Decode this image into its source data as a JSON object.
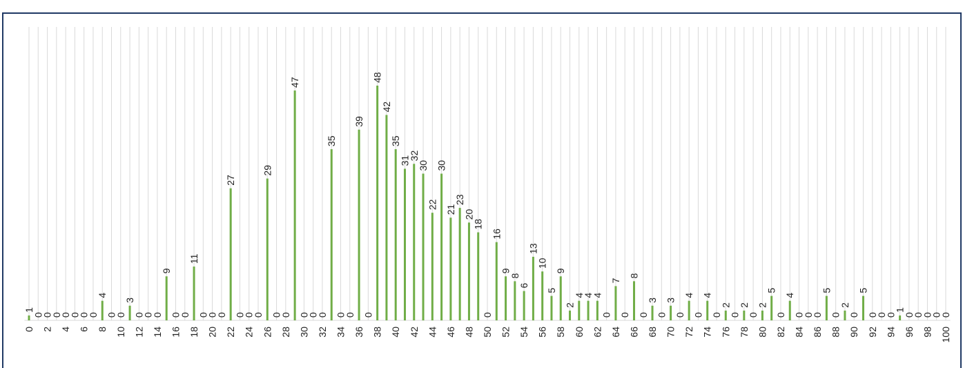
{
  "chart_data": {
    "type": "bar",
    "categories": [
      "0",
      null,
      "2",
      null,
      "4",
      null,
      "6",
      null,
      "8",
      null,
      "10",
      null,
      "12",
      null,
      "14",
      null,
      "16",
      null,
      "18",
      null,
      "20",
      null,
      "22",
      null,
      "24",
      null,
      "26",
      null,
      "28",
      null,
      "30",
      null,
      "32",
      null,
      "34",
      null,
      "36",
      null,
      "38",
      null,
      "40",
      null,
      "42",
      null,
      "44",
      null,
      "46",
      null,
      "48",
      null,
      "50",
      null,
      "52",
      null,
      "54",
      null,
      "56",
      null,
      "58",
      null,
      "60",
      null,
      "62",
      null,
      "64",
      null,
      "66",
      null,
      "68",
      null,
      "70",
      null,
      "72",
      null,
      "74",
      null,
      "76",
      null,
      "78",
      null,
      "80",
      null,
      "82",
      null,
      "84",
      null,
      "86",
      null,
      "88",
      null,
      "90",
      null,
      "92",
      null,
      "94",
      null,
      "96",
      null,
      "98",
      null,
      "100"
    ],
    "values": [
      1,
      0,
      0,
      0,
      0,
      0,
      0,
      0,
      4,
      0,
      0,
      3,
      0,
      0,
      0,
      9,
      0,
      0,
      11,
      0,
      0,
      0,
      27,
      0,
      0,
      0,
      29,
      0,
      0,
      47,
      0,
      0,
      0,
      35,
      0,
      0,
      39,
      0,
      48,
      42,
      35,
      31,
      32,
      30,
      22,
      30,
      21,
      23,
      20,
      18,
      0,
      16,
      9,
      8,
      6,
      13,
      10,
      5,
      9,
      2,
      4,
      4,
      4,
      0,
      7,
      0,
      8,
      0,
      3,
      0,
      3,
      0,
      4,
      0,
      4,
      0,
      2,
      0,
      2,
      0,
      2,
      5,
      0,
      4,
      0,
      0,
      0,
      5,
      0,
      2,
      0,
      5,
      0,
      0,
      0,
      1,
      0,
      0,
      0,
      0,
      0
    ],
    "color": "#70ad47",
    "ylim": [
      0,
      60
    ],
    "data_labels": true
  }
}
